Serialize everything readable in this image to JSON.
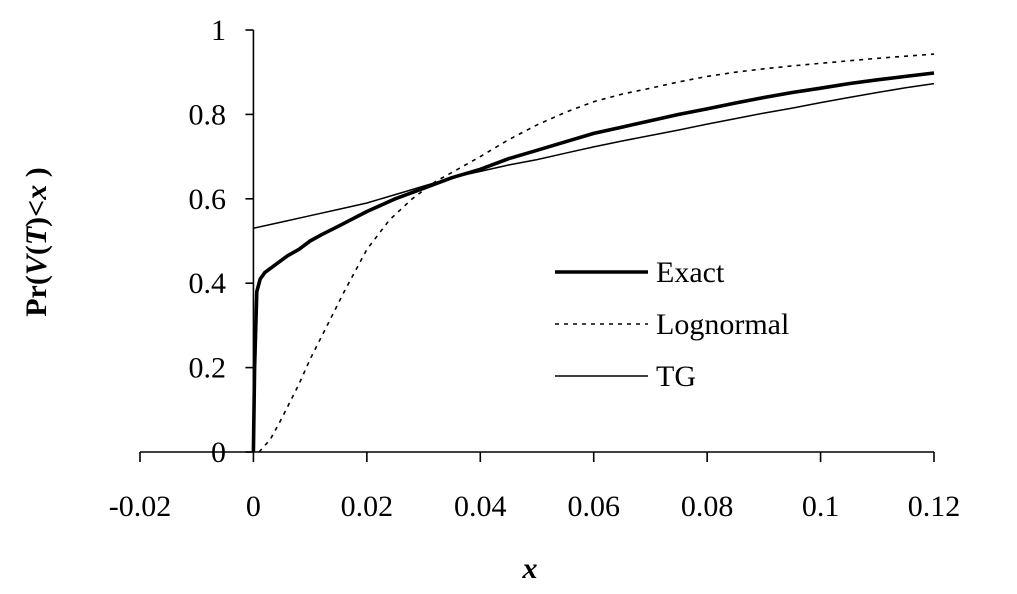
{
  "chart_data": {
    "type": "line",
    "title": "",
    "xlabel": "x",
    "ylabel": {
      "parts": [
        {
          "text": "Pr(",
          "italic": false
        },
        {
          "text": "V",
          "italic": true
        },
        {
          "text": "(",
          "italic": false
        },
        {
          "text": "T",
          "italic": true
        },
        {
          "text": ")<",
          "italic": false
        },
        {
          "text": "x",
          "italic": true
        },
        {
          "text": " )",
          "italic": false
        }
      ]
    },
    "xlim": [
      -0.02,
      0.12
    ],
    "ylim": [
      0,
      1
    ],
    "x_ticks": [
      -0.02,
      0,
      0.02,
      0.04,
      0.06,
      0.08,
      0.1,
      0.12
    ],
    "x_tick_labels": [
      "-0.02",
      "0",
      "0.02",
      "0.04",
      "0.06",
      "0.08",
      "0.1",
      "0.12"
    ],
    "y_ticks": [
      0,
      0.2,
      0.4,
      0.6,
      0.8,
      1
    ],
    "y_tick_labels": [
      "0",
      "0.2",
      "0.4",
      "0.6",
      "0.8",
      "1"
    ],
    "grid": false,
    "legend_position": "center-right",
    "series": [
      {
        "name": "Exact",
        "style": "thick-solid",
        "color": "#000000",
        "x": [
          0,
          0.0002,
          0.0006,
          0.0012,
          0.002,
          0.004,
          0.006,
          0.008,
          0.01,
          0.012,
          0.015,
          0.02,
          0.025,
          0.03,
          0.035,
          0.04,
          0.045,
          0.05,
          0.055,
          0.06,
          0.065,
          0.07,
          0.075,
          0.08,
          0.085,
          0.09,
          0.095,
          0.1,
          0.105,
          0.11,
          0.115,
          0.12
        ],
        "y": [
          0,
          0.2,
          0.38,
          0.41,
          0.425,
          0.445,
          0.465,
          0.48,
          0.5,
          0.515,
          0.535,
          0.57,
          0.6,
          0.625,
          0.65,
          0.67,
          0.695,
          0.715,
          0.735,
          0.755,
          0.77,
          0.785,
          0.8,
          0.813,
          0.827,
          0.84,
          0.852,
          0.862,
          0.873,
          0.882,
          0.89,
          0.898
        ]
      },
      {
        "name": "Lognormal",
        "style": "dotted",
        "color": "#000000",
        "x": [
          0.001,
          0.003,
          0.005,
          0.008,
          0.01,
          0.013,
          0.016,
          0.02,
          0.024,
          0.028,
          0.032,
          0.036,
          0.04,
          0.045,
          0.05,
          0.055,
          0.06,
          0.065,
          0.07,
          0.075,
          0.08,
          0.085,
          0.09,
          0.095,
          0.1,
          0.105,
          0.11,
          0.115,
          0.12
        ],
        "y": [
          0,
          0.03,
          0.08,
          0.16,
          0.22,
          0.3,
          0.38,
          0.48,
          0.55,
          0.6,
          0.64,
          0.67,
          0.7,
          0.74,
          0.775,
          0.805,
          0.83,
          0.848,
          0.862,
          0.877,
          0.89,
          0.9,
          0.908,
          0.915,
          0.921,
          0.927,
          0.933,
          0.938,
          0.943
        ]
      },
      {
        "name": "TG",
        "style": "thin-solid",
        "color": "#000000",
        "x": [
          0,
          0.005,
          0.01,
          0.015,
          0.02,
          0.025,
          0.03,
          0.035,
          0.04,
          0.045,
          0.05,
          0.055,
          0.06,
          0.065,
          0.07,
          0.075,
          0.08,
          0.085,
          0.09,
          0.095,
          0.1,
          0.105,
          0.11,
          0.115,
          0.12
        ],
        "y": [
          0.53,
          0.545,
          0.56,
          0.575,
          0.59,
          0.61,
          0.63,
          0.65,
          0.665,
          0.68,
          0.693,
          0.708,
          0.723,
          0.737,
          0.75,
          0.763,
          0.777,
          0.79,
          0.803,
          0.815,
          0.828,
          0.84,
          0.852,
          0.863,
          0.873
        ]
      }
    ]
  }
}
